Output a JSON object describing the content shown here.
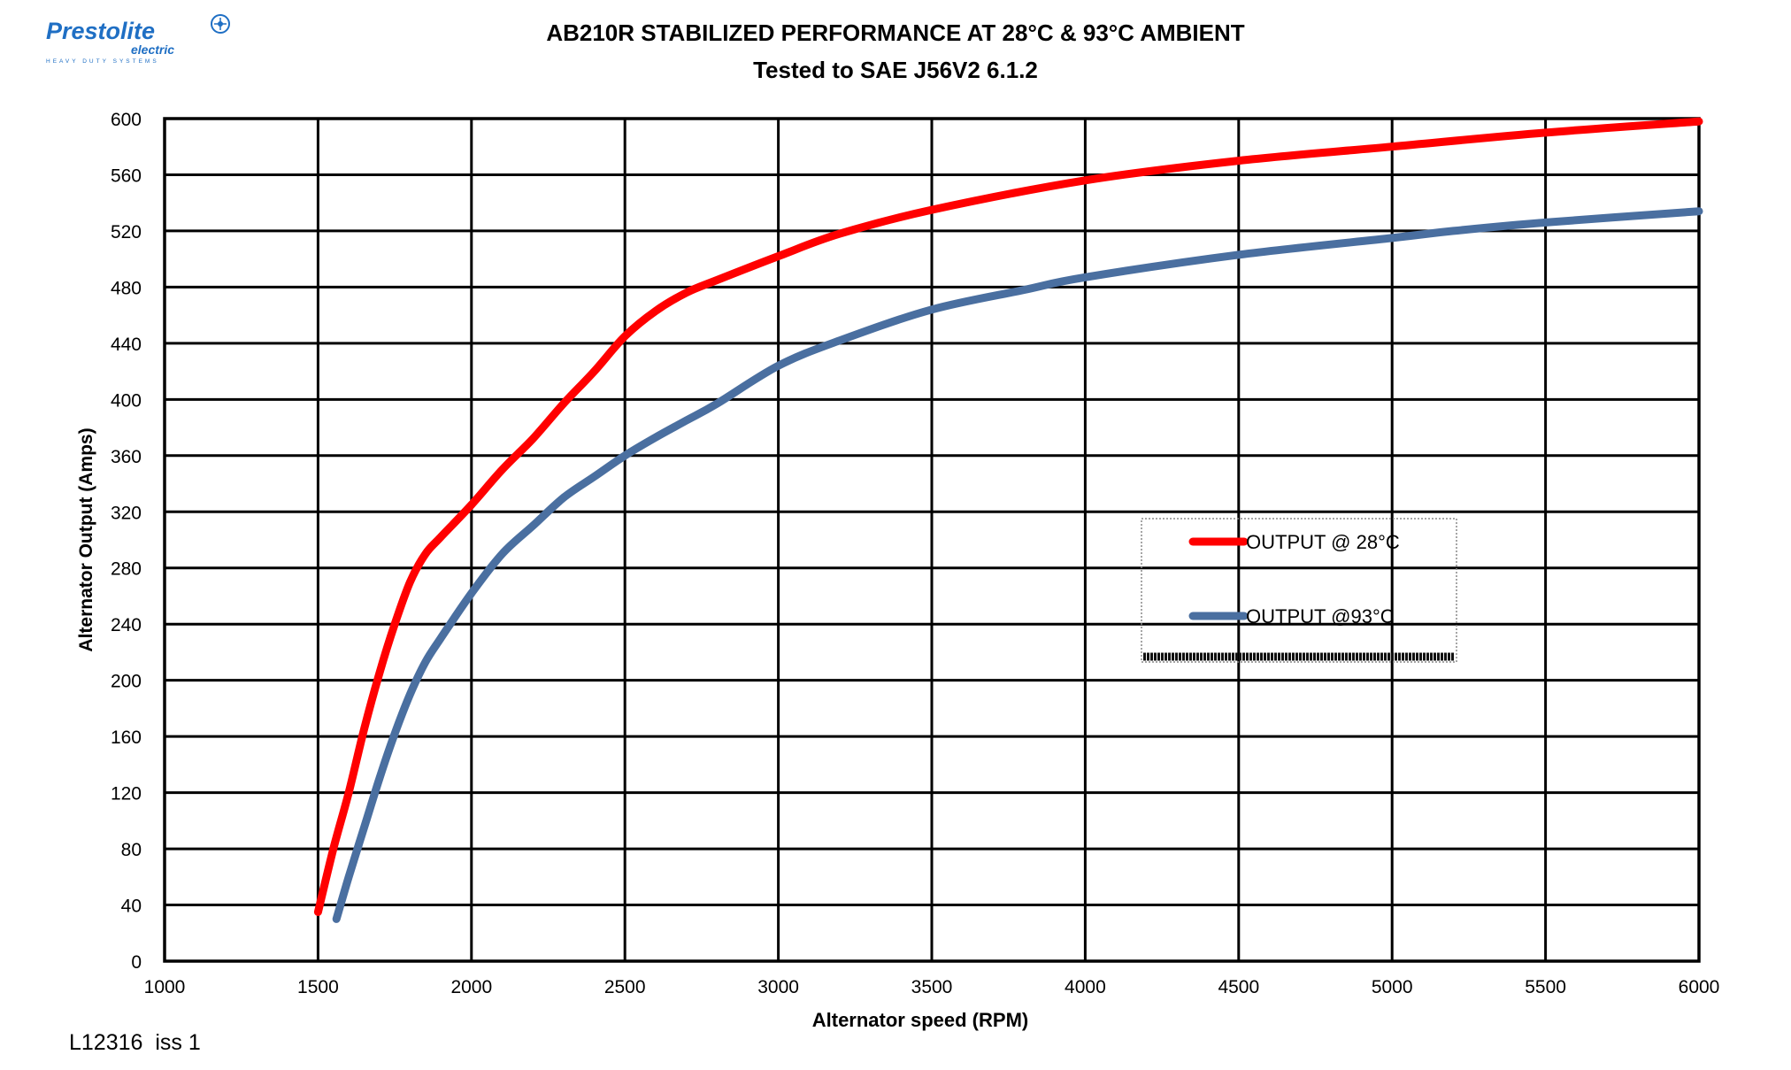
{
  "logo": {
    "brand": "Prestolite",
    "sub": "electric",
    "tagline": "HEAVY DUTY SYSTEMS"
  },
  "footer": {
    "doc_ref": "L12316  iss 1"
  },
  "chart_data": {
    "type": "line",
    "title": "AB210R STABILIZED PERFORMANCE AT 28°C  & 93°C AMBIENT",
    "subtitle": "Tested to SAE J56V2 6.1.2",
    "xlabel": "Alternator speed (RPM)",
    "ylabel": "Alternator Output (Amps)",
    "xlim": [
      1000,
      6000
    ],
    "ylim": [
      0,
      600
    ],
    "xticks": [
      1000,
      1500,
      2000,
      2500,
      3000,
      3500,
      4000,
      4500,
      5000,
      5500,
      6000
    ],
    "yticks": [
      0,
      40,
      80,
      120,
      160,
      200,
      240,
      280,
      320,
      360,
      400,
      440,
      480,
      520,
      560,
      600
    ],
    "grid": true,
    "legend_position": "center-right",
    "series": [
      {
        "name": "OUTPUT @ 28°C",
        "color": "#ff0000",
        "x": [
          1500,
          1550,
          1600,
          1650,
          1700,
          1750,
          1800,
          1850,
          1900,
          2000,
          2100,
          2200,
          2300,
          2400,
          2500,
          2600,
          2700,
          2800,
          3000,
          3200,
          3500,
          4000,
          4500,
          5000,
          5500,
          6000
        ],
        "y": [
          35,
          80,
          120,
          165,
          205,
          240,
          270,
          290,
          302,
          325,
          350,
          372,
          397,
          420,
          445,
          463,
          476,
          485,
          502,
          518,
          535,
          556,
          570,
          580,
          590,
          598
        ]
      },
      {
        "name": "OUTPUT @93°C",
        "color": "#4a6fa0",
        "x": [
          1560,
          1600,
          1650,
          1700,
          1750,
          1800,
          1850,
          1900,
          2000,
          2100,
          2200,
          2300,
          2400,
          2500,
          2600,
          2700,
          2800,
          3000,
          3200,
          3500,
          3800,
          4000,
          4500,
          5000,
          5200,
          5500,
          6000
        ],
        "y": [
          30,
          60,
          95,
          130,
          162,
          190,
          213,
          230,
          262,
          290,
          310,
          330,
          345,
          360,
          373,
          385,
          397,
          424,
          442,
          464,
          478,
          487,
          503,
          515,
          520,
          526,
          534
        ]
      }
    ]
  }
}
